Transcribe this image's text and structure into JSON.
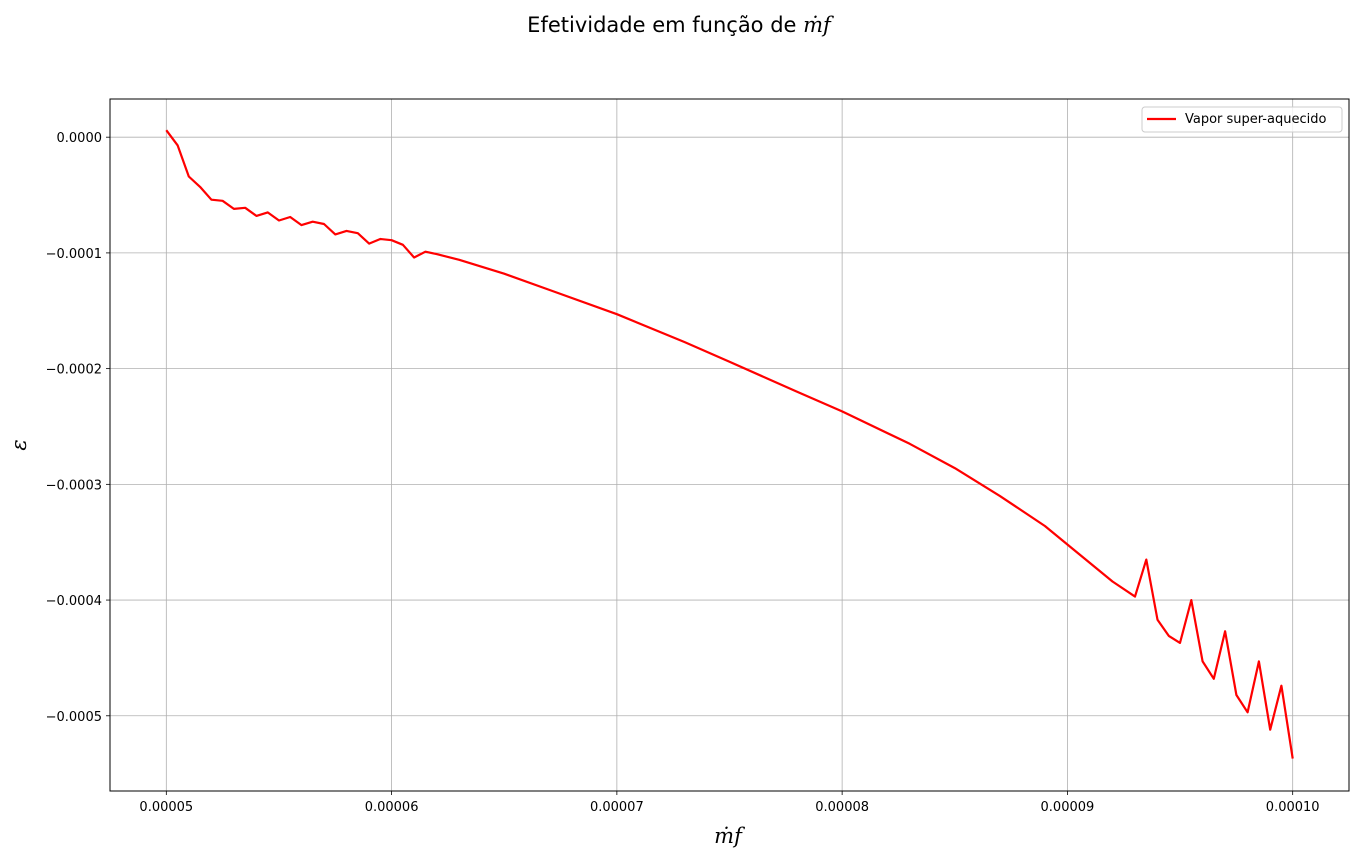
{
  "chart_data": {
    "type": "line",
    "title_prefix": "Efetividade em função de ",
    "xlabel": "ṁf",
    "ylabel": "ε",
    "xlim": [
      4.75e-05,
      0.0001025
    ],
    "ylim": [
      -0.000565,
      3.3e-05
    ],
    "x_ticks": [
      5e-05,
      6e-05,
      7e-05,
      8e-05,
      9e-05,
      0.0001
    ],
    "x_tick_labels": [
      "0.00005",
      "0.00006",
      "0.00007",
      "0.00008",
      "0.00009",
      "0.00010"
    ],
    "y_ticks": [
      0.0,
      -0.0001,
      -0.0002,
      -0.0003,
      -0.0004,
      -0.0005
    ],
    "y_tick_labels": [
      "0.0000",
      "−0.0001",
      "−0.0002",
      "−0.0003",
      "−0.0004",
      "−0.0005"
    ],
    "grid": true,
    "legend_position": "top-right",
    "series": [
      {
        "name": "Vapor super-aquecido",
        "color": "#ff0000",
        "points": [
          [
            5e-05,
            6e-06
          ],
          [
            5.05e-05,
            -7e-06
          ],
          [
            5.1e-05,
            -3.4e-05
          ],
          [
            5.15e-05,
            -4.3e-05
          ],
          [
            5.2e-05,
            -5.4e-05
          ],
          [
            5.25e-05,
            -5.5e-05
          ],
          [
            5.3e-05,
            -6.2e-05
          ],
          [
            5.35e-05,
            -6.1e-05
          ],
          [
            5.4e-05,
            -6.8e-05
          ],
          [
            5.45e-05,
            -6.5e-05
          ],
          [
            5.5e-05,
            -7.2e-05
          ],
          [
            5.55e-05,
            -6.9e-05
          ],
          [
            5.6e-05,
            -7.6e-05
          ],
          [
            5.65e-05,
            -7.3e-05
          ],
          [
            5.7e-05,
            -7.5e-05
          ],
          [
            5.75e-05,
            -8.4e-05
          ],
          [
            5.8e-05,
            -8.1e-05
          ],
          [
            5.85e-05,
            -8.3e-05
          ],
          [
            5.9e-05,
            -9.2e-05
          ],
          [
            5.95e-05,
            -8.8e-05
          ],
          [
            6e-05,
            -8.9e-05
          ],
          [
            6.05e-05,
            -9.3e-05
          ],
          [
            6.1e-05,
            -0.000104
          ],
          [
            6.15e-05,
            -9.9e-05
          ],
          [
            6.2e-05,
            -0.000101
          ],
          [
            6.3e-05,
            -0.000106
          ],
          [
            6.5e-05,
            -0.000118
          ],
          [
            6.7e-05,
            -0.000132
          ],
          [
            7e-05,
            -0.000153
          ],
          [
            7.3e-05,
            -0.000177
          ],
          [
            7.5e-05,
            -0.000194
          ],
          [
            7.8e-05,
            -0.00022
          ],
          [
            8e-05,
            -0.000237
          ],
          [
            8.3e-05,
            -0.000265
          ],
          [
            8.5e-05,
            -0.000286
          ],
          [
            8.7e-05,
            -0.00031
          ],
          [
            8.9e-05,
            -0.000336
          ],
          [
            9e-05,
            -0.000352
          ],
          [
            9.2e-05,
            -0.000384
          ],
          [
            9.3e-05,
            -0.000397
          ],
          [
            9.35e-05,
            -0.000365
          ],
          [
            9.4e-05,
            -0.000417
          ],
          [
            9.45e-05,
            -0.000431
          ],
          [
            9.5e-05,
            -0.000437
          ],
          [
            9.55e-05,
            -0.0004
          ],
          [
            9.6e-05,
            -0.000453
          ],
          [
            9.65e-05,
            -0.000468
          ],
          [
            9.7e-05,
            -0.000427
          ],
          [
            9.75e-05,
            -0.000482
          ],
          [
            9.8e-05,
            -0.000497
          ],
          [
            9.85e-05,
            -0.000453
          ],
          [
            9.9e-05,
            -0.000512
          ],
          [
            9.95e-05,
            -0.000474
          ],
          [
            0.0001,
            -0.000537
          ]
        ]
      }
    ]
  }
}
